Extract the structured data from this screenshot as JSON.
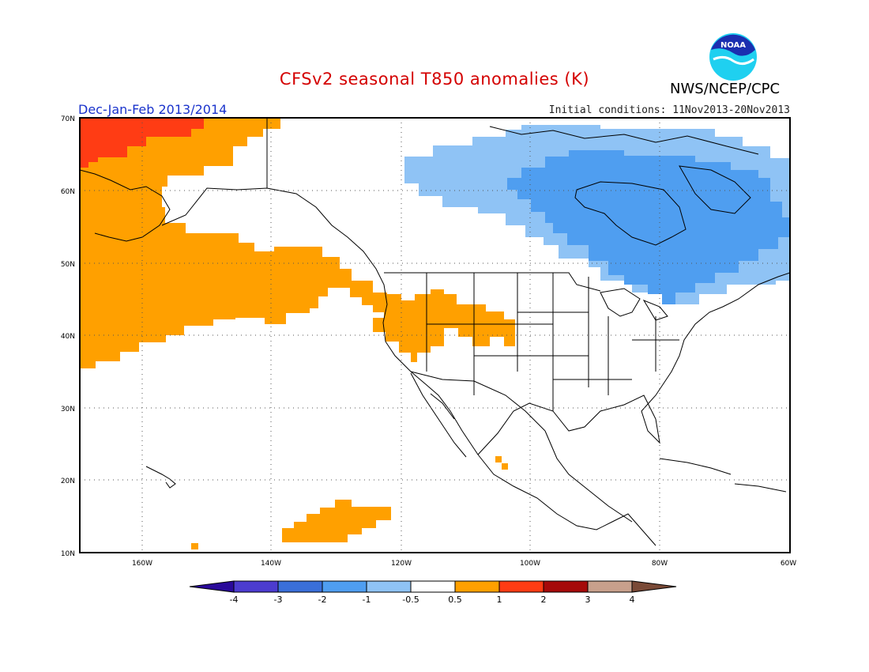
{
  "header": {
    "title": "CFSv2 seasonal T850 anomalies (K)",
    "subtitle": "Dec-Jan-Feb 2013/2014",
    "initial_conditions": "Initial conditions: 11Nov2013-20Nov2013",
    "agency": "NWS/NCEP/CPC",
    "logo_text": "NOAA"
  },
  "map": {
    "lat_labels": [
      "70N",
      "60N",
      "50N",
      "40N",
      "30N",
      "20N",
      "10N"
    ],
    "lon_labels": [
      "160W",
      "140W",
      "120W",
      "100W",
      "80W",
      "60W"
    ],
    "projection": "cylindrical",
    "region": "North America & NE Pacific",
    "anomaly_regions": [
      {
        "area": "Bering Sea / NE Pacific / Gulf of Alaska",
        "range": "0.5 to 1",
        "color": "#ffa000"
      },
      {
        "area": "Eastern Siberia / Bering Strait",
        "range": "1 to 2",
        "color": "#ff3c14"
      },
      {
        "area": "US Great Basin / Northern Plains",
        "range": "0.5 to 1",
        "color": "#ffa000"
      },
      {
        "area": "Tropical Pacific near 15N",
        "range": "0.5 to 1",
        "color": "#ffa000"
      },
      {
        "area": "Central & Eastern Canada / Hudson Bay",
        "range": "-1 to -0.5",
        "color": "#8fc3f5"
      },
      {
        "area": "Hudson Bay / Quebec / Great Lakes core",
        "range": "-2 to -1",
        "color": "#4f9ef0"
      }
    ]
  },
  "colorbar": {
    "labels": [
      "-4",
      "-3",
      "-2",
      "-1",
      "-0.5",
      "0.5",
      "1",
      "2",
      "3",
      "4"
    ],
    "colors": [
      "#2a0a9a",
      "#4c3ccf",
      "#3a6fd9",
      "#4f9ef0",
      "#8fc3f5",
      "#ffffff",
      "#ffa000",
      "#ff3c14",
      "#a50a0a",
      "#c8a08c",
      "#7a4a37"
    ]
  }
}
